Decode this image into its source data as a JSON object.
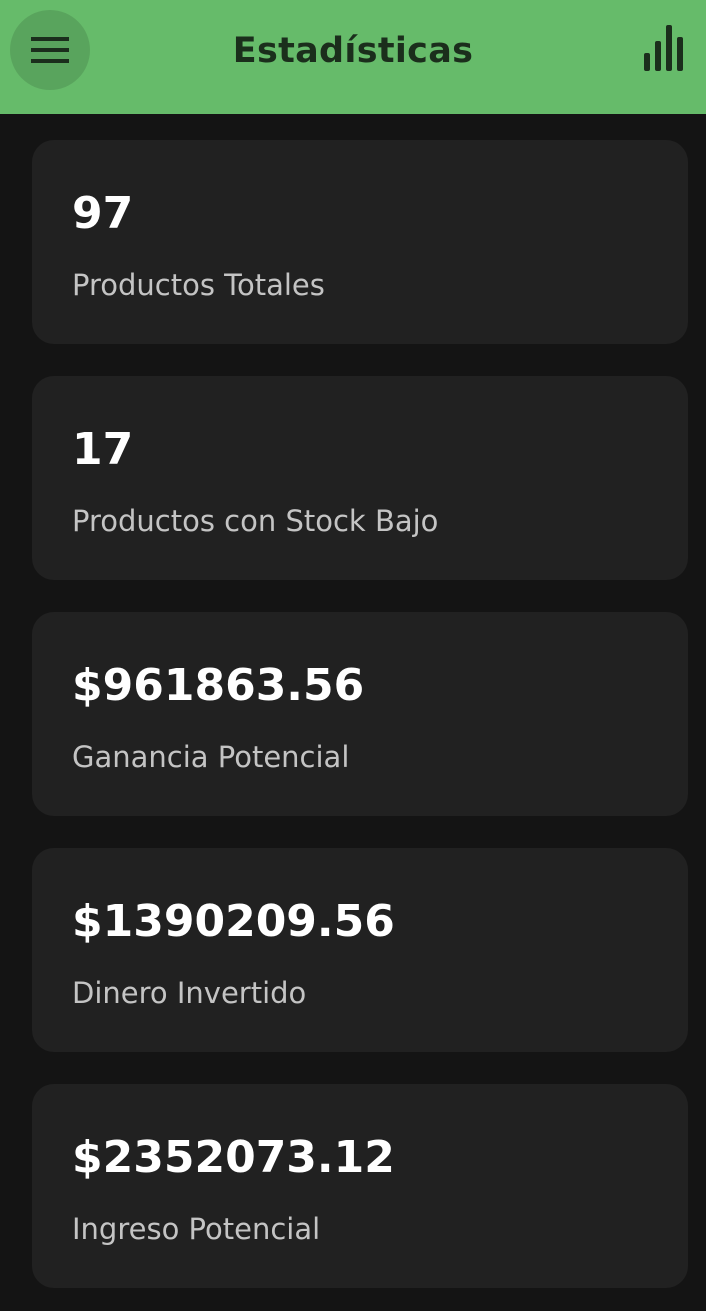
{
  "app_bar": {
    "title": "Estadísticas",
    "menu_icon": "menu-icon",
    "chart_icon": "bar-chart-icon",
    "background_color": "#66bb6a"
  },
  "stats": [
    {
      "value": "97",
      "label": "Productos Totales"
    },
    {
      "value": "17",
      "label": "Productos con Stock Bajo"
    },
    {
      "value": "$961863.56",
      "label": "Ganancia Potencial"
    },
    {
      "value": "$1390209.56",
      "label": "Dinero Invertido"
    },
    {
      "value": "$2352073.12",
      "label": "Ingreso Potencial"
    }
  ]
}
